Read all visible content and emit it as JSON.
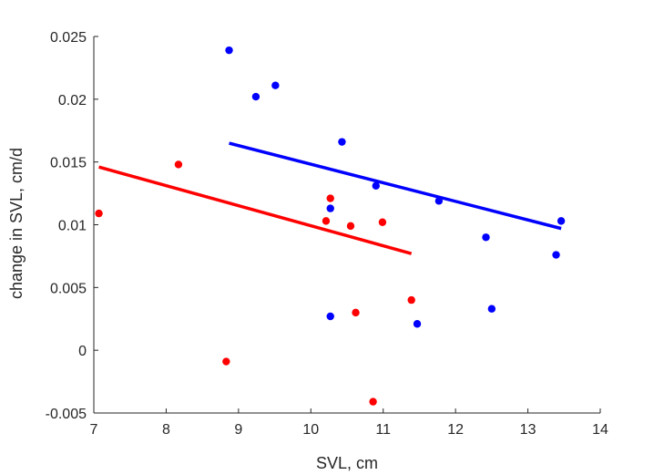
{
  "chart_data": {
    "type": "scatter",
    "title": "",
    "xlabel": "SVL, cm",
    "ylabel": "change in SVL, cm/d",
    "xlim": [
      7,
      14
    ],
    "ylim": [
      -0.005,
      0.025
    ],
    "xticks": [
      7,
      8,
      9,
      10,
      11,
      12,
      13,
      14
    ],
    "xtick_labels": [
      "7",
      "8",
      "9",
      "10",
      "11",
      "12",
      "13",
      "14"
    ],
    "yticks": [
      -0.005,
      0,
      0.005,
      0.01,
      0.015,
      0.02,
      0.025
    ],
    "ytick_labels": [
      "-0.005",
      "0",
      "0.005",
      "0.01",
      "0.015",
      "0.02",
      "0.025"
    ],
    "grid": false,
    "legend": "none",
    "series": [
      {
        "color": "#0000ff",
        "points": [
          [
            8.87,
            0.0239
          ],
          [
            9.24,
            0.0202
          ],
          [
            9.51,
            0.0211
          ],
          [
            10.43,
            0.0166
          ],
          [
            10.27,
            0.0113
          ],
          [
            10.9,
            0.0131
          ],
          [
            11.77,
            0.0119
          ],
          [
            12.42,
            0.009
          ],
          [
            13.39,
            0.0076
          ],
          [
            13.46,
            0.0103
          ],
          [
            10.27,
            0.0027
          ],
          [
            11.47,
            0.0021
          ],
          [
            12.5,
            0.0033
          ]
        ],
        "fit_line": [
          [
            8.87,
            0.0165
          ],
          [
            13.46,
            0.0097
          ]
        ]
      },
      {
        "color": "#ff0000",
        "points": [
          [
            7.07,
            0.0109
          ],
          [
            8.17,
            0.0148
          ],
          [
            10.27,
            0.0121
          ],
          [
            10.21,
            0.0103
          ],
          [
            10.55,
            0.0099
          ],
          [
            10.99,
            0.0102
          ],
          [
            10.62,
            0.003
          ],
          [
            11.39,
            0.004
          ],
          [
            8.83,
            -0.0009
          ],
          [
            10.86,
            -0.0041
          ]
        ],
        "fit_line": [
          [
            7.07,
            0.0146
          ],
          [
            11.39,
            0.0077
          ]
        ]
      }
    ]
  }
}
